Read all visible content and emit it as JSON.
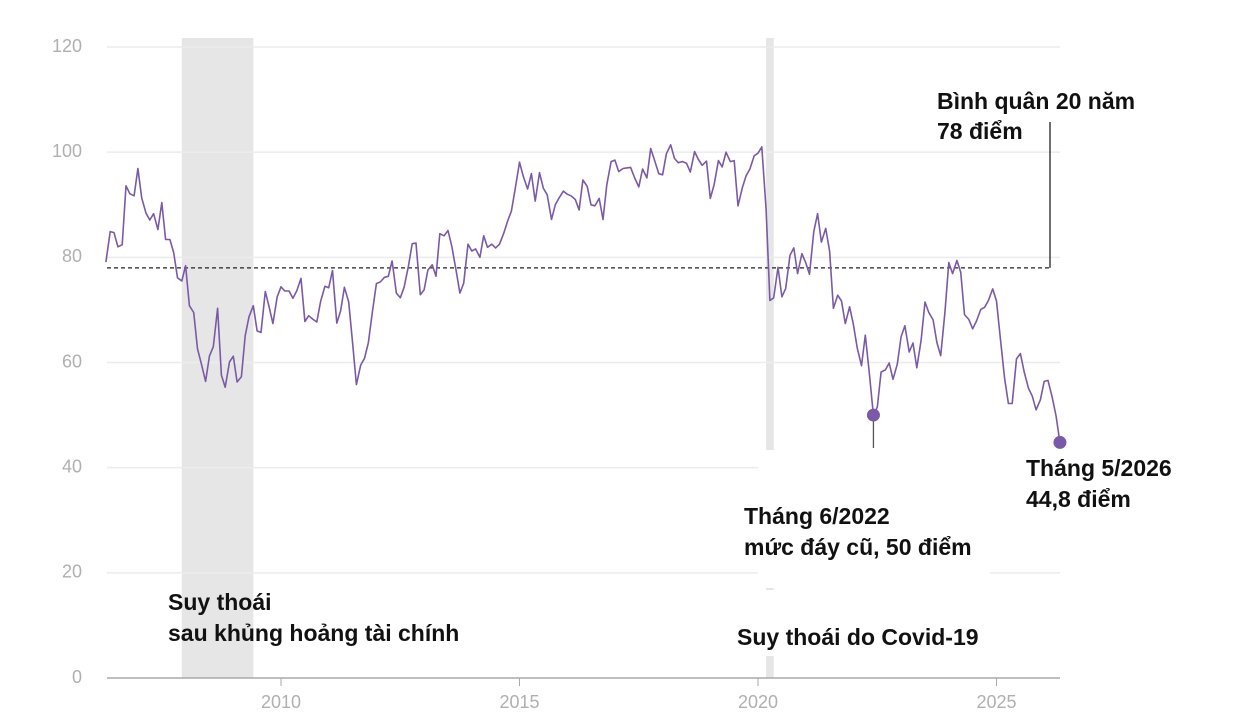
{
  "chart_data": {
    "type": "line",
    "color": "#7a5aa6",
    "xlim": [
      2006.2,
      2026.5
    ],
    "ylim": [
      0,
      120
    ],
    "xticks": [
      2010,
      2015,
      2020,
      2025
    ],
    "yticks": [
      0,
      20,
      40,
      60,
      80,
      100,
      120
    ],
    "grid": true,
    "x": [
      2006.33,
      2006.42,
      2006.5,
      2006.58,
      2006.67,
      2006.75,
      2006.83,
      2006.92,
      2007,
      2007.08,
      2007.17,
      2007.25,
      2007.33,
      2007.42,
      2007.5,
      2007.58,
      2007.67,
      2007.75,
      2007.83,
      2007.92,
      2008,
      2008.08,
      2008.17,
      2008.25,
      2008.33,
      2008.42,
      2008.5,
      2008.58,
      2008.67,
      2008.75,
      2008.83,
      2008.92,
      2009,
      2009.08,
      2009.17,
      2009.25,
      2009.33,
      2009.42,
      2009.5,
      2009.58,
      2009.67,
      2009.75,
      2009.83,
      2009.92,
      2010,
      2010.08,
      2010.17,
      2010.25,
      2010.33,
      2010.42,
      2010.5,
      2010.58,
      2010.67,
      2010.75,
      2010.83,
      2010.92,
      2011,
      2011.08,
      2011.17,
      2011.25,
      2011.33,
      2011.42,
      2011.5,
      2011.58,
      2011.67,
      2011.75,
      2011.83,
      2011.92,
      2012,
      2012.08,
      2012.17,
      2012.25,
      2012.33,
      2012.42,
      2012.5,
      2012.58,
      2012.67,
      2012.75,
      2012.83,
      2012.92,
      2013,
      2013.08,
      2013.17,
      2013.25,
      2013.33,
      2013.42,
      2013.5,
      2013.58,
      2013.67,
      2013.75,
      2013.83,
      2013.92,
      2014,
      2014.08,
      2014.17,
      2014.25,
      2014.33,
      2014.42,
      2014.5,
      2014.58,
      2014.67,
      2014.75,
      2014.83,
      2014.92,
      2015,
      2015.08,
      2015.17,
      2015.25,
      2015.33,
      2015.42,
      2015.5,
      2015.58,
      2015.67,
      2015.75,
      2015.83,
      2015.92,
      2016,
      2016.08,
      2016.17,
      2016.25,
      2016.33,
      2016.42,
      2016.5,
      2016.58,
      2016.67,
      2016.75,
      2016.83,
      2016.92,
      2017,
      2017.08,
      2017.17,
      2017.25,
      2017.33,
      2017.42,
      2017.5,
      2017.58,
      2017.67,
      2017.75,
      2017.83,
      2017.92,
      2018,
      2018.08,
      2018.17,
      2018.25,
      2018.33,
      2018.42,
      2018.5,
      2018.58,
      2018.67,
      2018.75,
      2018.83,
      2018.92,
      2019,
      2019.08,
      2019.17,
      2019.25,
      2019.33,
      2019.42,
      2019.5,
      2019.58,
      2019.67,
      2019.75,
      2019.83,
      2019.92,
      2020,
      2020.08,
      2020.17,
      2020.25,
      2020.33,
      2020.42,
      2020.5,
      2020.58,
      2020.67,
      2020.75,
      2020.83,
      2020.92,
      2021,
      2021.08,
      2021.17,
      2021.25,
      2021.33,
      2021.42,
      2021.5,
      2021.58,
      2021.67,
      2021.75,
      2021.83,
      2021.92,
      2022,
      2022.08,
      2022.17,
      2022.25,
      2022.33,
      2022.42,
      2022.5,
      2022.58,
      2022.67,
      2022.75,
      2022.83,
      2022.92,
      2023,
      2023.08,
      2023.17,
      2023.25,
      2023.33,
      2023.42,
      2023.5,
      2023.58,
      2023.67,
      2023.75,
      2023.83,
      2023.92,
      2024,
      2024.08,
      2024.17,
      2024.25,
      2024.33,
      2024.42,
      2024.5,
      2024.58,
      2024.67,
      2024.75,
      2024.83,
      2024.92,
      2025,
      2025.08,
      2025.17,
      2025.25,
      2025.33,
      2025.42,
      2025.5,
      2025.58,
      2025.67,
      2025.75,
      2025.83,
      2025.92,
      2026,
      2026.08,
      2026.17,
      2026.25,
      2026.33
    ],
    "values": [
      79.1,
      84.9,
      84.7,
      82.0,
      82.4,
      93.6,
      92.1,
      91.7,
      96.9,
      91.3,
      88.4,
      87.1,
      88.3,
      85.3,
      90.4,
      83.4,
      83.4,
      80.9,
      76.1,
      75.5,
      78.4,
      70.8,
      69.5,
      62.6,
      59.8,
      56.4,
      61.2,
      63.0,
      70.3,
      57.6,
      55.3,
      60.1,
      61.2,
      56.3,
      57.3,
      65.1,
      68.7,
      70.8,
      66.0,
      65.7,
      73.5,
      70.6,
      67.4,
      72.5,
      74.4,
      73.6,
      73.6,
      72.2,
      73.6,
      76.0,
      67.8,
      68.9,
      68.2,
      67.7,
      71.6,
      74.5,
      74.2,
      77.5,
      67.5,
      69.8,
      74.3,
      71.5,
      63.7,
      55.8,
      59.5,
      60.8,
      63.7,
      69.9,
      75.0,
      75.3,
      76.2,
      76.4,
      79.3,
      73.2,
      72.3,
      74.3,
      78.3,
      82.6,
      82.7,
      72.9,
      73.8,
      77.6,
      78.6,
      76.4,
      84.5,
      84.1,
      85.1,
      82.1,
      77.5,
      73.2,
      75.1,
      82.5,
      81.2,
      81.6,
      80.0,
      84.1,
      81.9,
      82.5,
      81.8,
      82.5,
      84.6,
      86.9,
      88.8,
      93.6,
      98.1,
      95.4,
      93.0,
      95.9,
      90.7,
      96.1,
      93.1,
      91.9,
      87.2,
      90.0,
      91.3,
      92.6,
      92.0,
      91.7,
      91.0,
      89.0,
      94.7,
      93.5,
      90.0,
      89.8,
      91.2,
      87.2,
      93.8,
      98.2,
      98.5,
      96.3,
      96.9,
      97.0,
      97.1,
      95.0,
      93.4,
      96.8,
      95.1,
      100.7,
      98.5,
      95.9,
      95.7,
      99.7,
      101.4,
      98.8,
      98.0,
      98.2,
      97.9,
      96.2,
      100.1,
      98.6,
      97.5,
      98.3,
      91.2,
      93.8,
      98.4,
      97.2,
      100.0,
      98.2,
      98.4,
      89.8,
      93.2,
      95.5,
      96.8,
      99.3,
      99.8,
      101.0,
      89.1,
      71.8,
      72.3,
      78.1,
      72.5,
      74.1,
      80.4,
      81.8,
      76.9,
      80.7,
      79.0,
      76.8,
      84.9,
      88.3,
      82.9,
      85.5,
      81.2,
      70.3,
      72.8,
      71.7,
      67.4,
      70.6,
      67.2,
      62.8,
      59.4,
      65.2,
      58.4,
      50.0,
      51.5,
      58.2,
      58.6,
      59.9,
      56.8,
      59.7,
      64.9,
      67.0,
      62.0,
      63.7,
      59.0,
      64.2,
      71.5,
      69.5,
      68.1,
      63.8,
      61.3,
      69.7,
      79.0,
      76.9,
      79.4,
      77.2,
      69.1,
      68.2,
      66.4,
      67.9,
      70.1,
      70.5,
      71.8,
      74.0,
      71.7,
      64.7,
      57.0,
      52.2,
      52.2,
      60.7,
      61.7,
      58.2,
      55.1,
      53.6,
      51.0,
      52.9,
      56.4,
      56.6,
      53.3,
      49.8,
      44.8
    ],
    "average": {
      "value": 78,
      "label": [
        "Bình quân 20 năm",
        "78 điểm"
      ]
    },
    "highlights": [
      {
        "x": 2022.42,
        "value": 50,
        "label": [
          "Tháng 6/2022",
          "mức đáy cũ, 50 điểm"
        ]
      },
      {
        "x": 2026.33,
        "value": 44.8,
        "label": [
          "Tháng 5/2026",
          "44,8 điểm"
        ]
      }
    ],
    "recessions": [
      {
        "start": 2007.92,
        "end": 2009.42,
        "label": [
          "Suy thoái",
          "sau khủng hoảng tài chính"
        ]
      },
      {
        "start": 2020.17,
        "end": 2020.33,
        "label": [
          "Suy thoái do Covid-19"
        ]
      }
    ]
  }
}
